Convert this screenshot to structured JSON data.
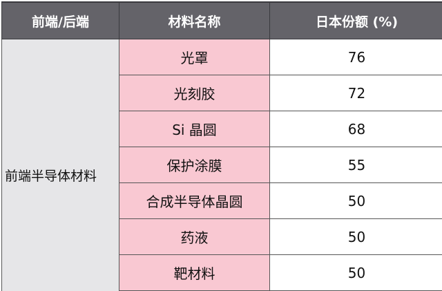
{
  "headers": [
    "前端/后端",
    "材料名称",
    "日本份额 (%)"
  ],
  "group": "前端半导体材料",
  "rows": [
    {
      "material": "光罩",
      "share": "76"
    },
    {
      "material": "光刻胶",
      "share": "72"
    },
    {
      "material": "Si 晶圆",
      "share": "68"
    },
    {
      "material": "保护涂膜",
      "share": "55"
    },
    {
      "material": "合成半导体晶圆",
      "share": "50"
    },
    {
      "material": "药液",
      "share": "50"
    },
    {
      "material": "靶材料",
      "share": "50"
    }
  ]
}
